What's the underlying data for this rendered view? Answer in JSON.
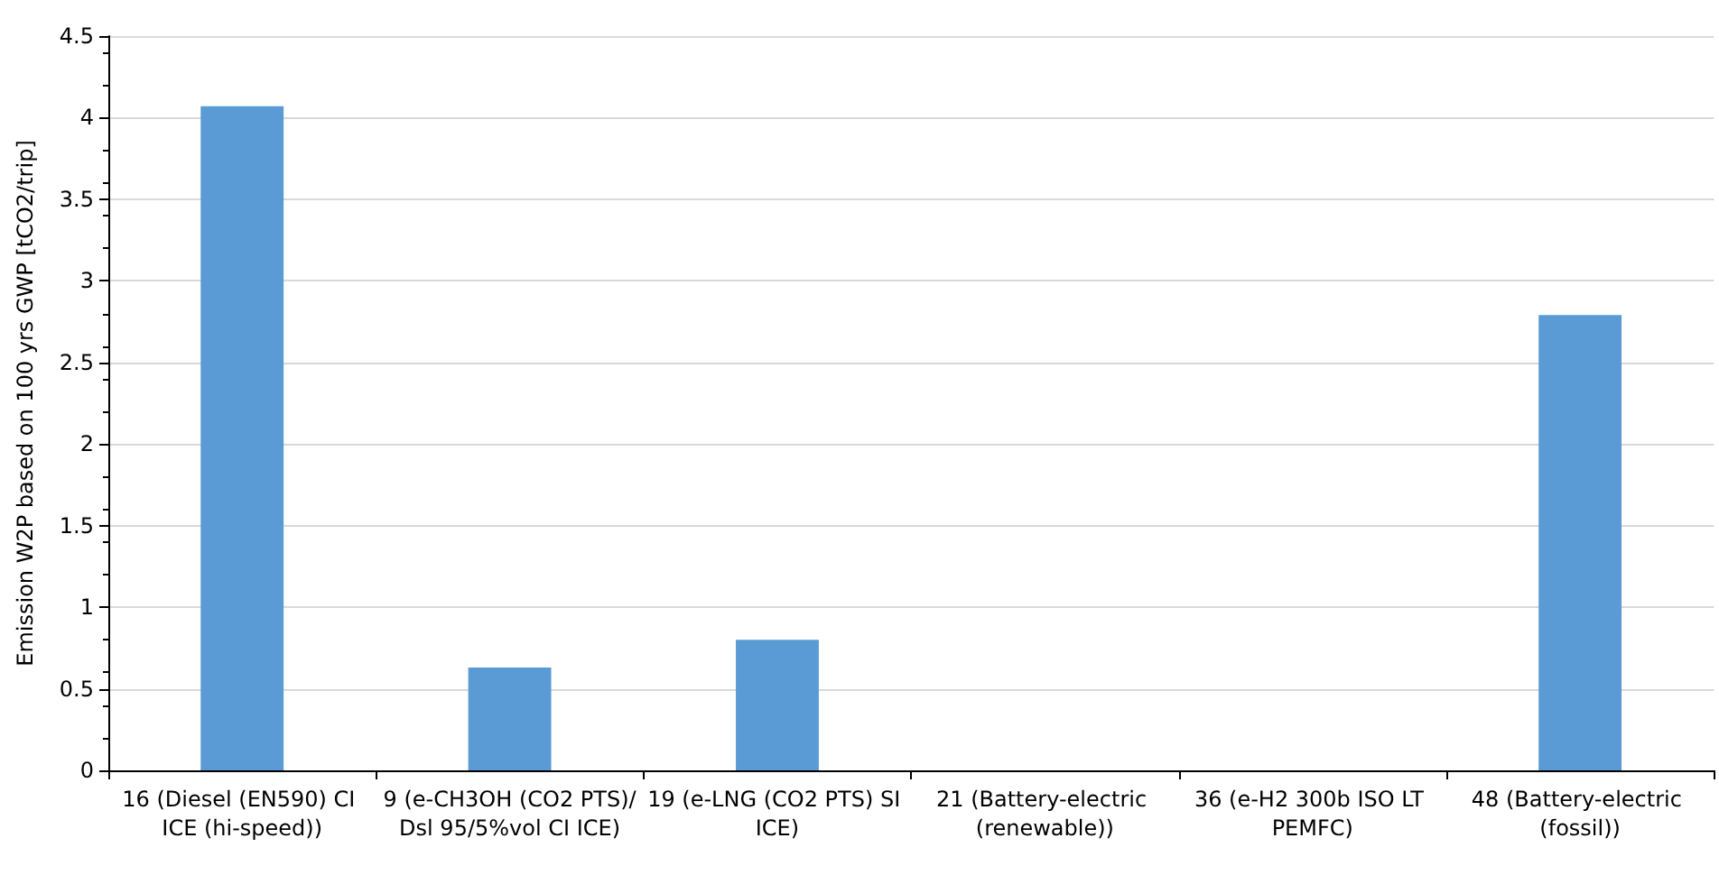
{
  "chart_data": {
    "type": "bar",
    "ylabel": "Emission W2P based on 100 yrs GWP [tCO2/trip]",
    "categories": [
      "16 (Diesel (EN590) CI ICE (hi-speed))",
      "9 (e-CH3OH (CO2 PTS)/Dsl 95/5%vol CI ICE)",
      "19 (e-LNG (CO2 PTS) SI ICE)",
      "21 (Battery-electric (renewable))",
      "36 (e-H2 300b ISO LT PEMFC)",
      "48 (Battery-electric (fossil))"
    ],
    "values": [
      4.07,
      0.63,
      0.8,
      0,
      0,
      2.79
    ],
    "color": "#5b9bd5",
    "ylim": [
      0,
      4.5
    ],
    "yticks": [
      0,
      0.5,
      1,
      1.5,
      2,
      2.5,
      3,
      3.5,
      4,
      4.5
    ],
    "grid": "y"
  }
}
